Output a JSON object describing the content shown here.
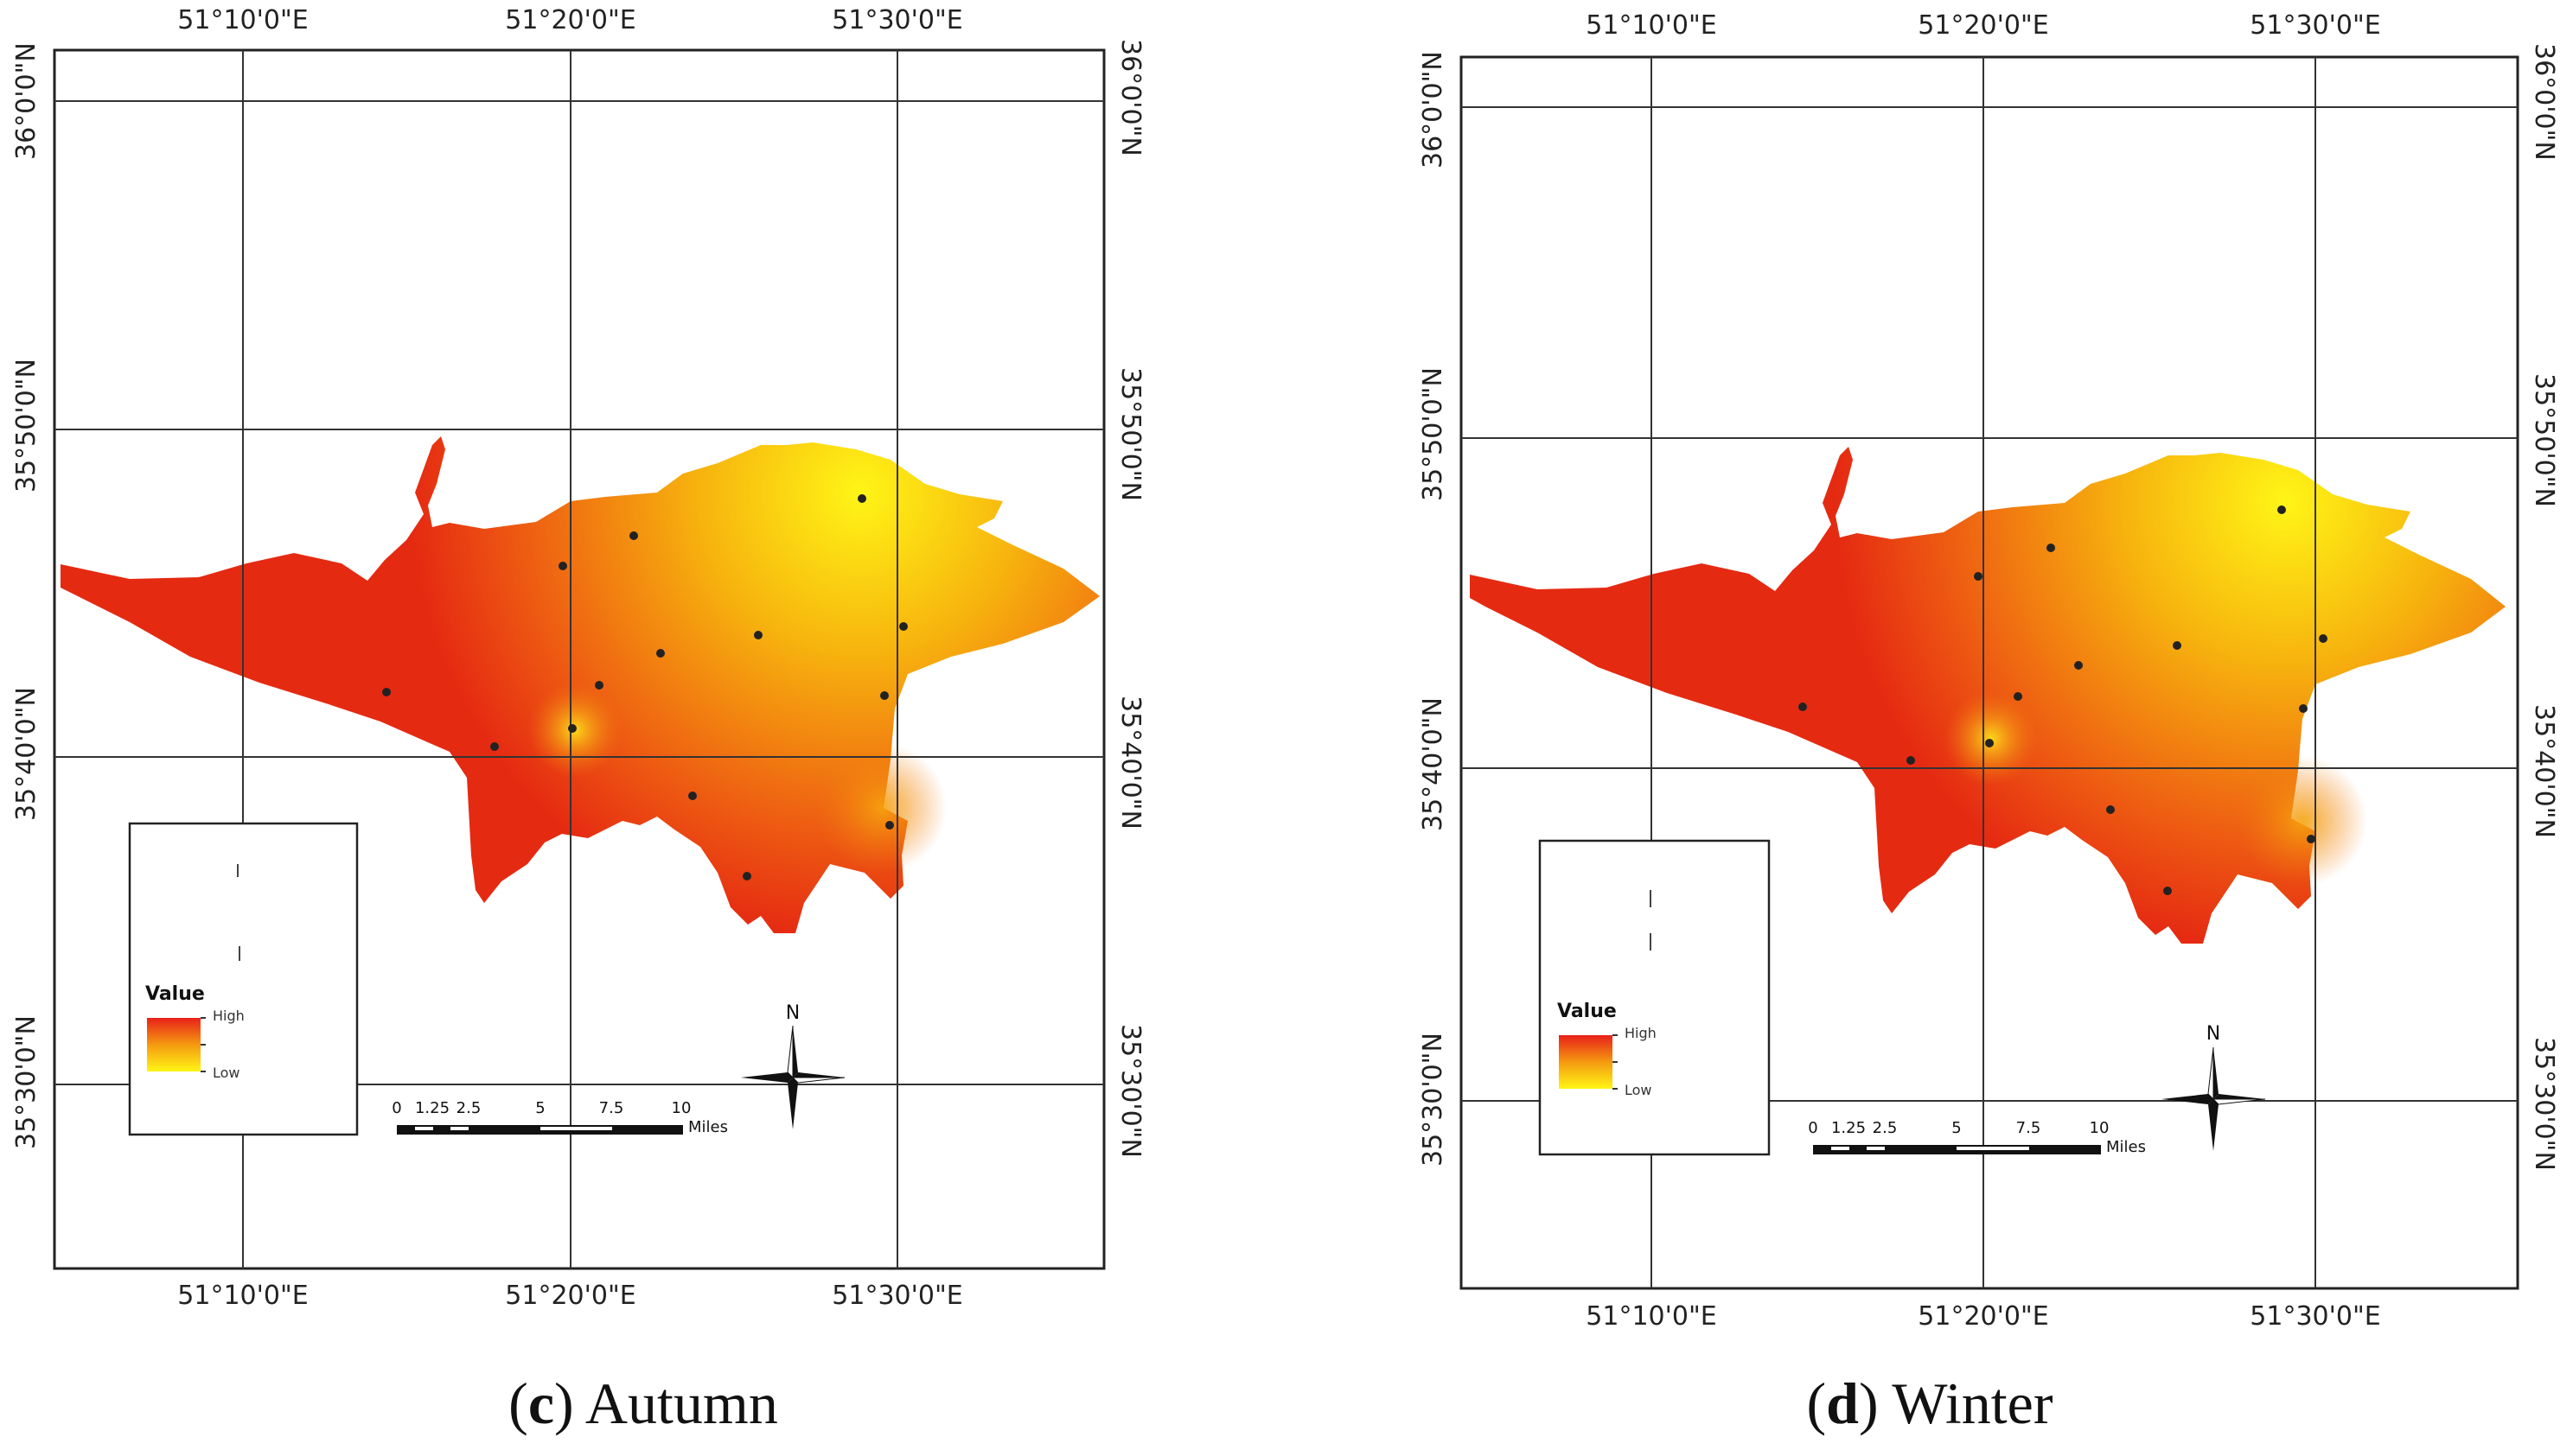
{
  "figure": {
    "panels": [
      {
        "id": "c",
        "caption_letter": "c",
        "caption_text": "Autumn",
        "lon_labels": [
          "51°10'0\"E",
          "51°20'0\"E",
          "51°30'0\"E"
        ],
        "lat_labels": [
          "36°0'0\"N",
          "35°50'0\"N",
          "35°40'0\"N",
          "35°30'0\"N"
        ],
        "legend": {
          "title": "Value",
          "high": "High",
          "low": "Low",
          "high_color": "#e8201a",
          "low_color": "#fff516"
        },
        "scale_bar": {
          "ticks": [
            "0",
            "1.25",
            "2.5",
            "5",
            "7.5",
            "10"
          ],
          "unit": "Miles"
        },
        "north_label": "N",
        "stations_count": 14
      },
      {
        "id": "d",
        "caption_letter": "d",
        "caption_text": "Winter",
        "lon_labels": [
          "51°10'0\"E",
          "51°20'0\"E",
          "51°30'0\"E"
        ],
        "lat_labels": [
          "36°0'0\"N",
          "35°50'0\"N",
          "35°40'0\"N",
          "35°30'0\"N"
        ],
        "legend": {
          "title": "Value",
          "high": "High",
          "low": "Low",
          "high_color": "#e8201a",
          "low_color": "#fff516"
        },
        "scale_bar": {
          "ticks": [
            "0",
            "1.25",
            "2.5",
            "5",
            "7.5",
            "10"
          ],
          "unit": "Miles"
        },
        "north_label": "N",
        "stations_count": 14
      }
    ]
  },
  "colors": {
    "map_red": "#e52a12",
    "map_orange": "#f07a10",
    "map_yellow": "#fff516",
    "frame": "#222222",
    "grid": "#333333"
  }
}
